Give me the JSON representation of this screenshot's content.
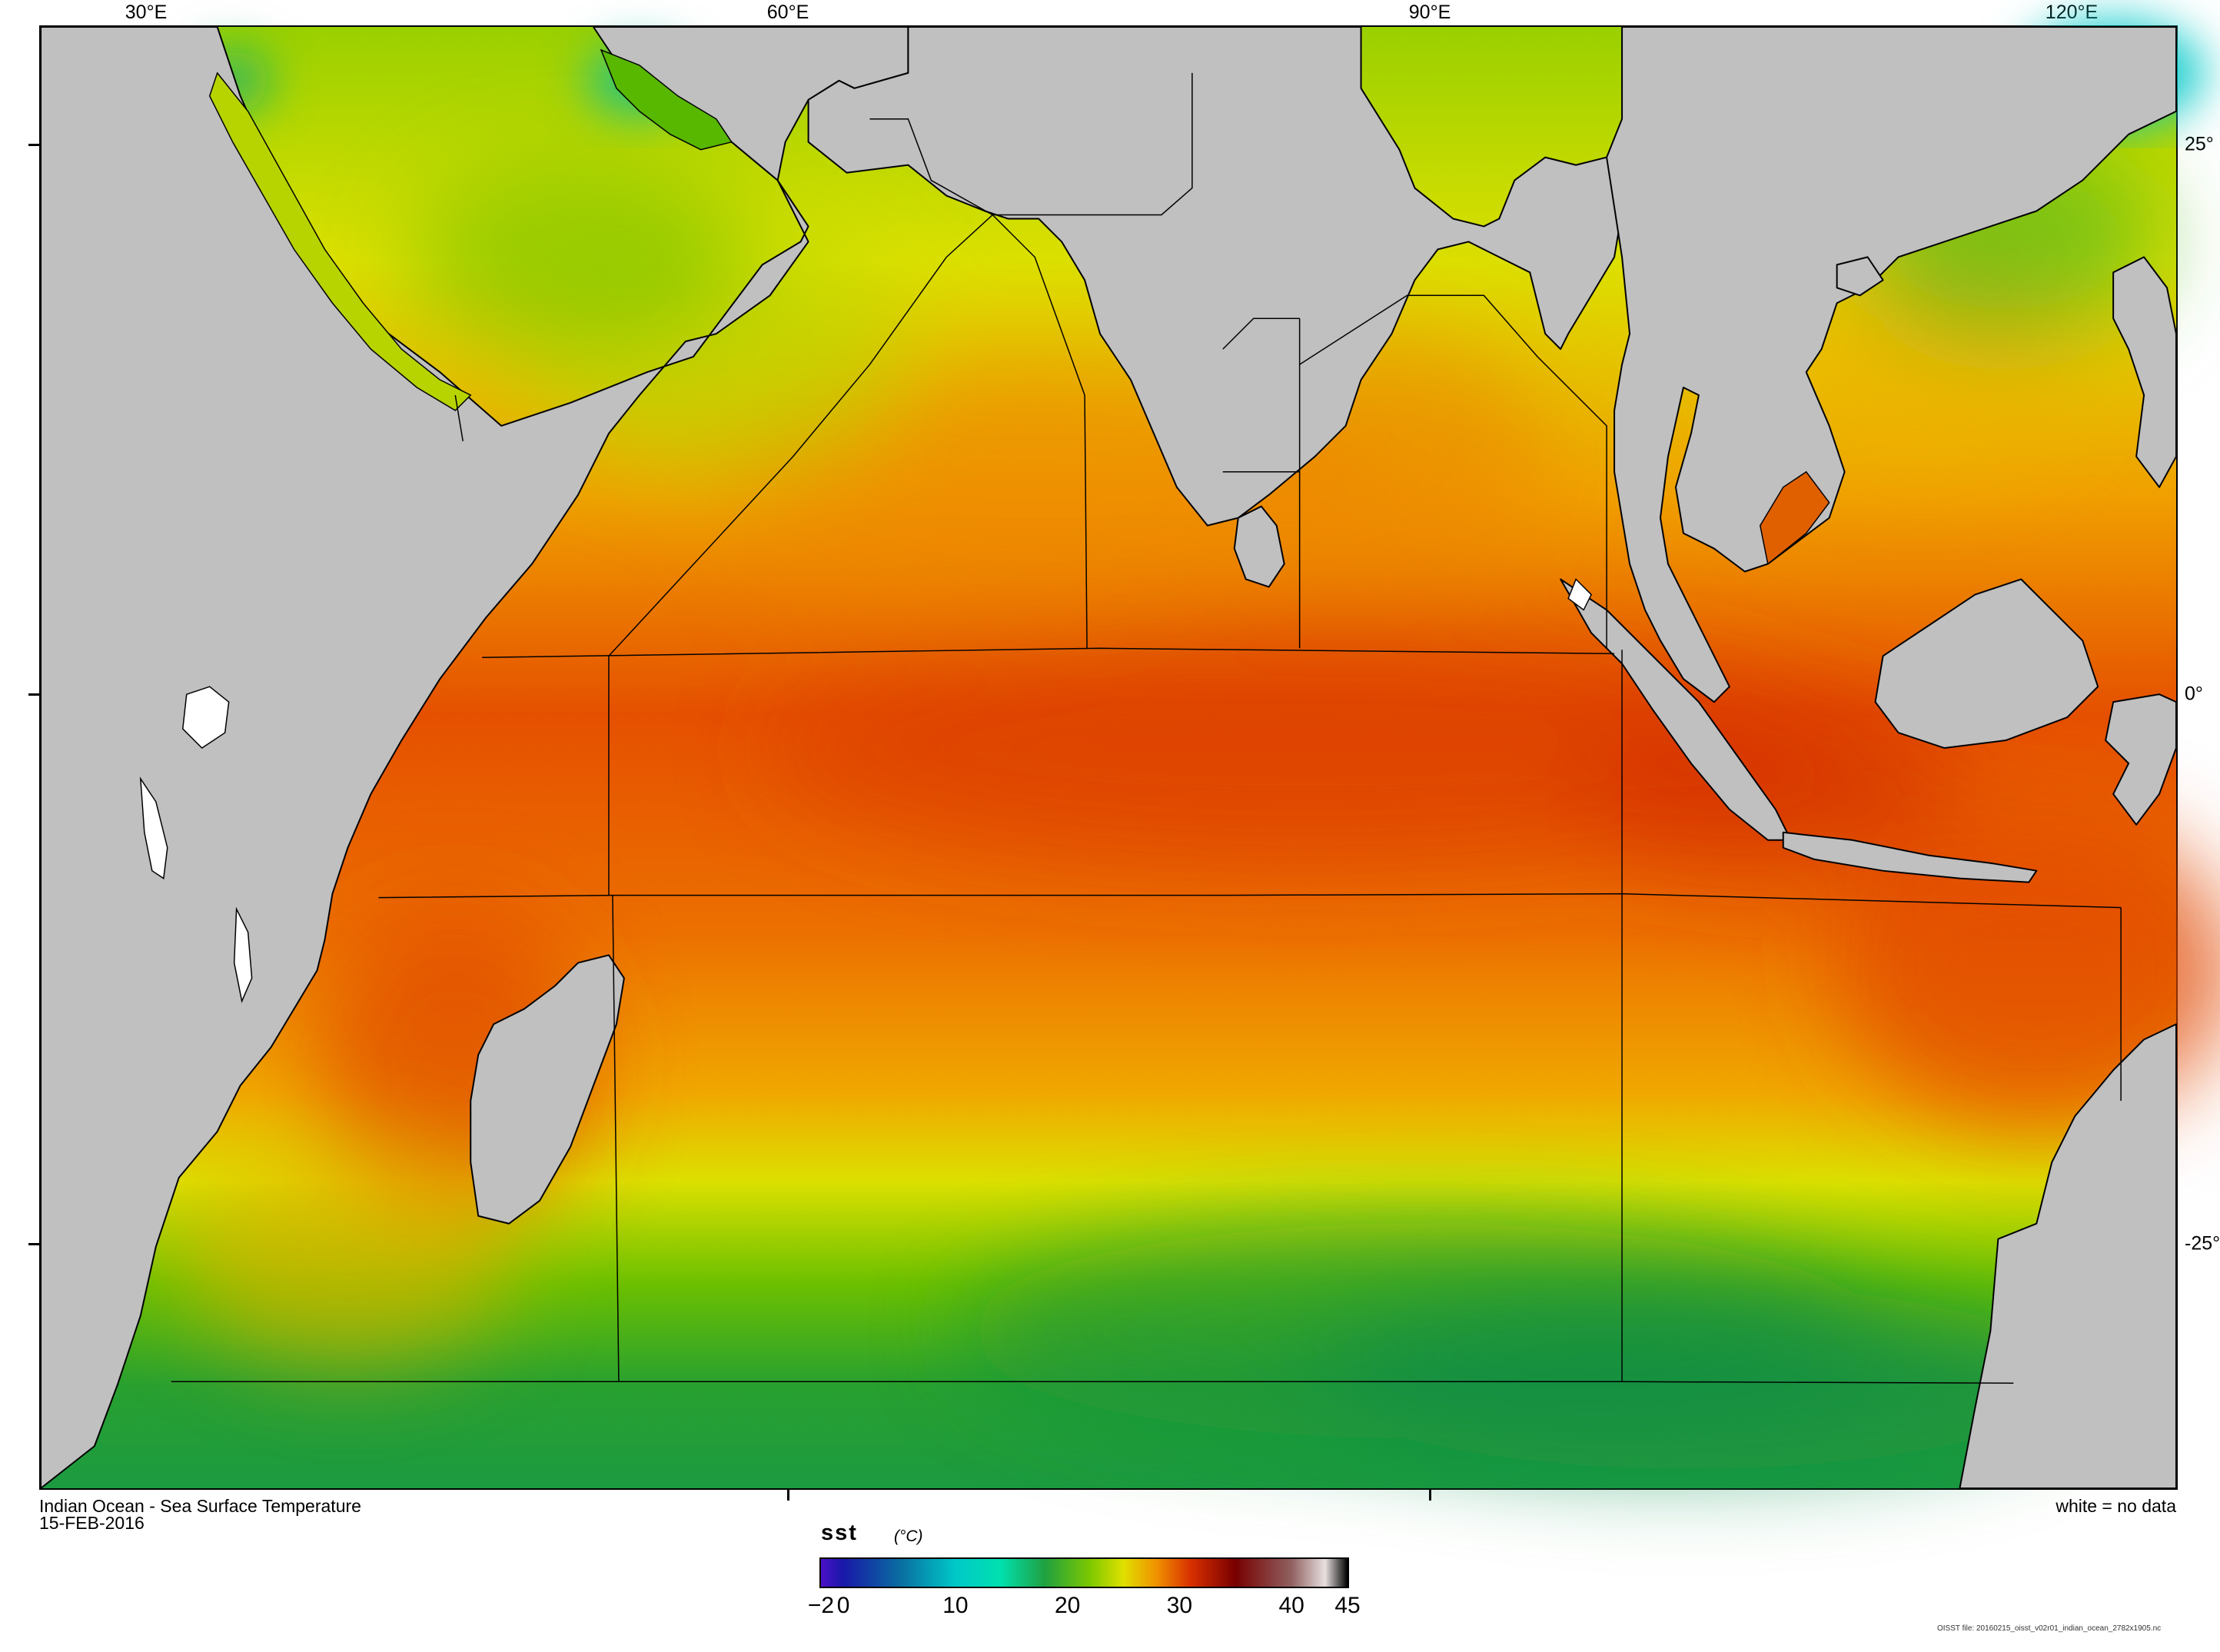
{
  "map": {
    "title": "Indian Ocean - Sea Surface Temperature",
    "date": "15-FEB-2016",
    "no_data_note": "white = no data",
    "file_note": "OISST file: 20160215_oisst_v02r01_indian_ocean_2782x1905.nc",
    "lon_labels": [
      "30°E",
      "60°E",
      "90°E",
      "120°E"
    ],
    "lat_labels": [
      "25°",
      "0°",
      "-25°"
    ],
    "land_color": "#c0c0c0",
    "no_data_color": "#ffffff",
    "boundary_color": "#000000"
  },
  "colorbar": {
    "variable": "sst",
    "unit": "(°C)",
    "min": -2,
    "max": 45,
    "tick_labels": [
      "−2",
      "0",
      "10",
      "20",
      "30",
      "40",
      "45"
    ],
    "stops": [
      {
        "value": -2,
        "color": "#4b10c8"
      },
      {
        "value": 0,
        "color": "#1818a8"
      },
      {
        "value": 5,
        "color": "#0a6ca0"
      },
      {
        "value": 10,
        "color": "#00c8c8"
      },
      {
        "value": 14,
        "color": "#00e0b0"
      },
      {
        "value": 18,
        "color": "#20a040"
      },
      {
        "value": 22,
        "color": "#7cc800"
      },
      {
        "value": 25,
        "color": "#e0e000"
      },
      {
        "value": 28,
        "color": "#f09000"
      },
      {
        "value": 31,
        "color": "#d83000"
      },
      {
        "value": 35,
        "color": "#780000"
      },
      {
        "value": 40,
        "color": "#906060"
      },
      {
        "value": 43,
        "color": "#e8e0e0"
      },
      {
        "value": 45,
        "color": "#000000"
      }
    ]
  }
}
